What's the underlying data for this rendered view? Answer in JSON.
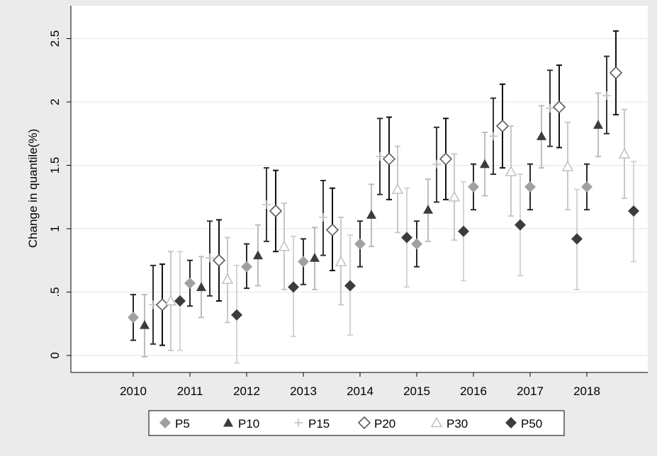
{
  "chart_data": {
    "type": "scatter",
    "title": "",
    "xlabel": "",
    "ylabel": "Change in quantile(%)",
    "ylim": [
      -0.13,
      2.65
    ],
    "grid": true,
    "legend_position": "bottom",
    "categories": [
      "2010",
      "2011",
      "2012",
      "2013",
      "2014",
      "2015",
      "2016",
      "2017",
      "2018"
    ],
    "y_ticks": [
      {
        "value": 0,
        "label": "0"
      },
      {
        "value": 0.5,
        "label": ".5"
      },
      {
        "value": 1,
        "label": "1"
      },
      {
        "value": 1.5,
        "label": "1.5"
      },
      {
        "value": 2,
        "label": "2"
      },
      {
        "value": 2.5,
        "label": "2.5"
      }
    ],
    "series": [
      {
        "name": "P5",
        "marker": "diamond-filled",
        "color": "#a0a0a0",
        "bar_color": "#2a2a2a",
        "values": [
          0.3,
          0.57,
          0.7,
          0.74,
          0.88,
          0.88,
          1.33,
          1.33,
          1.33
        ],
        "ci_low": [
          0.12,
          0.39,
          0.53,
          0.56,
          0.7,
          0.7,
          1.15,
          1.15,
          1.15
        ],
        "ci_high": [
          0.48,
          0.75,
          0.88,
          0.92,
          1.06,
          1.06,
          1.51,
          1.51,
          1.51
        ]
      },
      {
        "name": "P10",
        "marker": "triangle-filled",
        "color": "#3c3c3c",
        "bar_color": "#bdbdbd",
        "values": [
          0.24,
          0.54,
          0.79,
          0.77,
          1.11,
          1.15,
          1.51,
          1.73,
          1.82
        ],
        "ci_low": [
          -0.01,
          0.3,
          0.55,
          0.52,
          0.86,
          0.9,
          1.26,
          1.48,
          1.57
        ],
        "ci_high": [
          0.48,
          0.78,
          1.03,
          1.01,
          1.35,
          1.39,
          1.76,
          1.97,
          2.07
        ]
      },
      {
        "name": "P15",
        "marker": "plus",
        "color": "#c4c4c4",
        "bar_color": "#333333",
        "values": [
          0.4,
          0.77,
          1.19,
          1.09,
          1.57,
          1.51,
          1.73,
          1.95,
          2.05
        ],
        "ci_low": [
          0.09,
          0.47,
          0.9,
          0.79,
          1.27,
          1.21,
          1.43,
          1.65,
          1.75
        ],
        "ci_high": [
          0.71,
          1.06,
          1.48,
          1.38,
          1.87,
          1.8,
          2.03,
          2.25,
          2.36
        ]
      },
      {
        "name": "P20",
        "marker": "diamond-open",
        "color": "#5a5a5a",
        "bar_color": "#111111",
        "values": [
          0.4,
          0.75,
          1.14,
          0.99,
          1.55,
          1.55,
          1.81,
          1.96,
          2.23
        ],
        "ci_low": [
          0.08,
          0.43,
          0.82,
          0.67,
          1.23,
          1.23,
          1.48,
          1.64,
          1.9
        ],
        "ci_high": [
          0.72,
          1.07,
          1.46,
          1.32,
          1.88,
          1.87,
          2.14,
          2.29,
          2.56
        ]
      },
      {
        "name": "P30",
        "marker": "triangle-open",
        "color": "#bdbdbd",
        "bar_color": "#c8c8c8",
        "values": [
          0.43,
          0.6,
          0.86,
          0.74,
          1.31,
          1.25,
          1.45,
          1.49,
          1.59
        ],
        "ci_low": [
          0.04,
          0.26,
          0.52,
          0.4,
          0.97,
          0.91,
          1.1,
          1.15,
          1.24
        ],
        "ci_high": [
          0.82,
          0.93,
          1.2,
          1.09,
          1.65,
          1.59,
          1.81,
          1.84,
          1.94
        ]
      },
      {
        "name": "P50",
        "marker": "diamond-filled",
        "color": "#3c3c3c",
        "bar_color": "#d4d4d4",
        "values": [
          0.43,
          0.32,
          0.54,
          0.55,
          0.93,
          0.98,
          1.03,
          0.92,
          1.14
        ],
        "ci_low": [
          0.04,
          -0.06,
          0.15,
          0.16,
          0.54,
          0.59,
          0.63,
          0.52,
          0.74
        ],
        "ci_high": [
          0.82,
          0.71,
          0.94,
          0.95,
          1.32,
          1.37,
          1.43,
          1.31,
          1.53
        ]
      }
    ]
  }
}
